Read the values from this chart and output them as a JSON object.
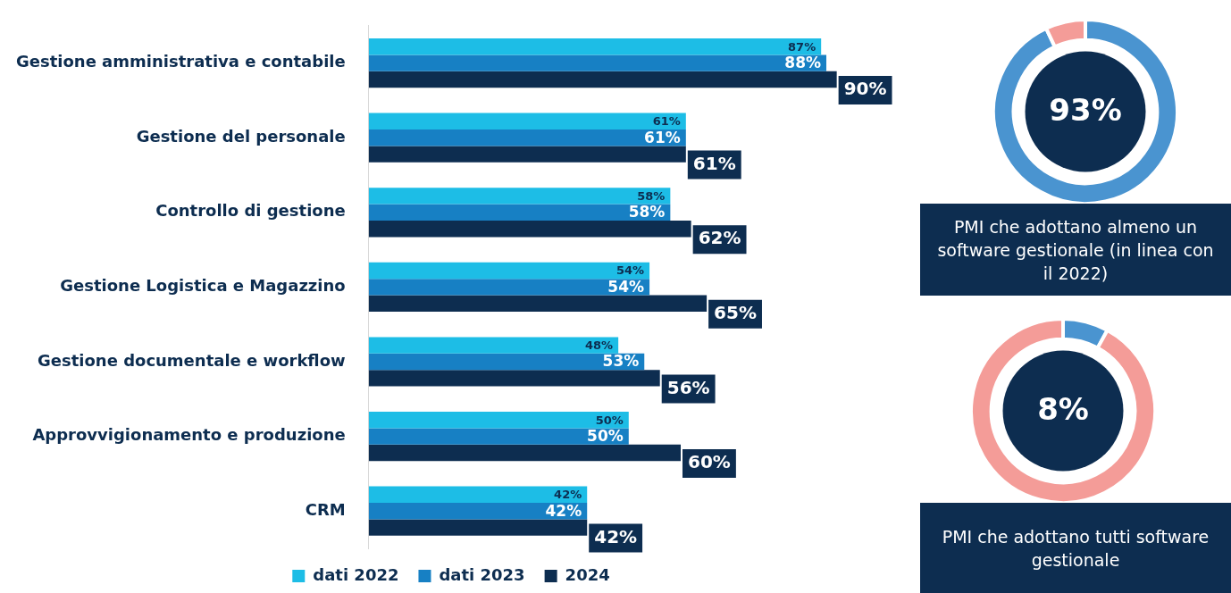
{
  "chart_data": [
    {
      "type": "bar",
      "orientation": "horizontal",
      "categories": [
        "Gestione amministrativa e contabile",
        "Gestione del personale",
        "Controllo di gestione",
        "Gestione Logistica e Magazzino",
        "Gestione documentale e workflow",
        "Approvvigionamento e produzione",
        "CRM"
      ],
      "series": [
        {
          "name": "dati 2022",
          "color": "#1dbde6",
          "values": [
            87,
            61,
            58,
            54,
            48,
            50,
            42
          ],
          "value_labels": [
            "87%",
            "61%",
            "58%",
            "54%",
            "48%",
            "50%",
            "42%"
          ]
        },
        {
          "name": "dati 2023",
          "color": "#1780c4",
          "values": [
            88,
            61,
            58,
            54,
            53,
            50,
            42
          ],
          "value_labels": [
            "88%",
            "61%",
            "58%",
            "54%",
            "53%",
            "50%",
            "42%"
          ]
        },
        {
          "name": "2024",
          "color": "#0d2d50",
          "values": [
            90,
            61,
            62,
            65,
            56,
            60,
            42
          ],
          "value_labels": [
            "90%",
            "61%",
            "62%",
            "65%",
            "56%",
            "60%",
            "42%"
          ]
        }
      ],
      "legend": "bottom"
    },
    {
      "type": "donut",
      "categories": [
        null,
        null
      ],
      "values": [
        93,
        7
      ],
      "colors": [
        "#4a94d0",
        "#f49c98"
      ],
      "value_labels": [
        "93%",
        null
      ],
      "annotations": [
        "PMI che adottano almeno un software gestionale (in linea con il 2022)"
      ]
    },
    {
      "type": "donut",
      "categories": [
        null,
        null
      ],
      "values": [
        8,
        92
      ],
      "colors": [
        "#4a94d0",
        "#f49c98"
      ],
      "value_labels": [
        "8%",
        null
      ],
      "annotations": [
        "PMI che adottano tutti software gestionale"
      ]
    }
  ]
}
